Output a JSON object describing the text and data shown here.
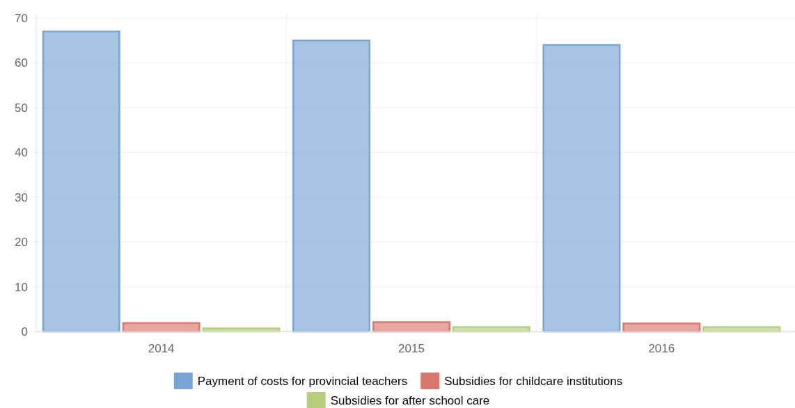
{
  "chart_data": {
    "type": "bar",
    "categories": [
      "2014",
      "2015",
      "2016"
    ],
    "series": [
      {
        "name": "Payment of costs for provincial teachers",
        "color": "#78a5d5",
        "values": [
          67,
          65,
          64
        ]
      },
      {
        "name": "Subsidies for childcare institutions",
        "color": "#d9786f",
        "values": [
          1.9,
          2.1,
          1.8
        ]
      },
      {
        "name": "Subsidies for after school care",
        "color": "#b7cf7c",
        "values": [
          0.7,
          1.0,
          1.0
        ]
      }
    ],
    "ylim": [
      0,
      70
    ],
    "yticks": [
      0,
      10,
      20,
      30,
      40,
      50,
      60,
      70
    ],
    "grid": true,
    "legend": "bottom"
  }
}
